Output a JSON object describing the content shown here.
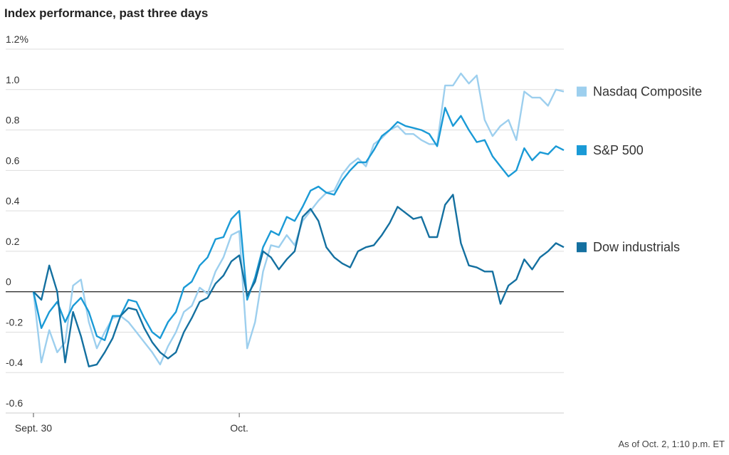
{
  "chart_data": {
    "type": "line",
    "title": "Index performance, past three days",
    "note": "As of Oct. 2, 1:10 p.m. ET",
    "categories": [
      "Sept. 30",
      null,
      null,
      null,
      null,
      null,
      null,
      null,
      null,
      null,
      null,
      null,
      null,
      null,
      null,
      null,
      null,
      null,
      null,
      null,
      null,
      null,
      null,
      null,
      null,
      null,
      "Oct.",
      null,
      null,
      null,
      null,
      null,
      null,
      null,
      null,
      null,
      null,
      null,
      null,
      null,
      null,
      null,
      null,
      null,
      null,
      null,
      null,
      null,
      null,
      null,
      null,
      null,
      null,
      null,
      null,
      null,
      null,
      null,
      null,
      null,
      null,
      null,
      null,
      null,
      null,
      null,
      null,
      null
    ],
    "ylim": [
      -0.6,
      1.2
    ],
    "yticks": [
      -0.6,
      -0.4,
      -0.2,
      0,
      0.2,
      0.4,
      0.6,
      0.8,
      {
        "value": 1,
        "label": "1.0"
      },
      {
        "value": 1.2,
        "label": "1.2%"
      }
    ],
    "grid": true,
    "series": [
      {
        "name": "Nasdaq Composite",
        "color": "#9dcfee",
        "values": [
          0,
          -0.35,
          -0.19,
          -0.3,
          -0.25,
          0.03,
          0.06,
          -0.15,
          -0.28,
          -0.2,
          -0.13,
          -0.12,
          -0.15,
          -0.2,
          -0.25,
          -0.3,
          -0.36,
          -0.27,
          -0.2,
          -0.1,
          -0.07,
          0.02,
          -0.01,
          0.1,
          0.17,
          0.28,
          0.3,
          -0.28,
          -0.15,
          0.1,
          0.23,
          0.22,
          0.28,
          0.23,
          0.35,
          0.4,
          0.45,
          0.49,
          0.5,
          0.58,
          0.63,
          0.66,
          0.62,
          0.73,
          0.76,
          0.8,
          0.82,
          0.78,
          0.78,
          0.75,
          0.73,
          0.73,
          1.02,
          1.02,
          1.08,
          1.03,
          1.07,
          0.85,
          0.77,
          0.82,
          0.85,
          0.75,
          0.99,
          0.96,
          0.96,
          0.92,
          1.0,
          0.99
        ]
      },
      {
        "name": "S&P 500",
        "color": "#1a9ad6",
        "values": [
          0,
          -0.18,
          -0.1,
          -0.05,
          -0.15,
          -0.07,
          -0.03,
          -0.1,
          -0.22,
          -0.24,
          -0.12,
          -0.12,
          -0.04,
          -0.05,
          -0.13,
          -0.2,
          -0.23,
          -0.15,
          -0.1,
          0.02,
          0.05,
          0.13,
          0.17,
          0.26,
          0.27,
          0.36,
          0.4,
          -0.04,
          0.07,
          0.22,
          0.3,
          0.28,
          0.37,
          0.35,
          0.42,
          0.5,
          0.52,
          0.49,
          0.48,
          0.55,
          0.6,
          0.64,
          0.64,
          0.7,
          0.77,
          0.8,
          0.84,
          0.82,
          0.81,
          0.8,
          0.78,
          0.72,
          0.91,
          0.82,
          0.87,
          0.8,
          0.74,
          0.75,
          0.67,
          0.62,
          0.57,
          0.6,
          0.71,
          0.65,
          0.69,
          0.68,
          0.72,
          0.7
        ]
      },
      {
        "name": "Dow industrials",
        "color": "#1470a0",
        "values": [
          0,
          -0.04,
          0.13,
          0,
          -0.35,
          -0.1,
          -0.22,
          -0.37,
          -0.36,
          -0.3,
          -0.23,
          -0.12,
          -0.08,
          -0.09,
          -0.18,
          -0.25,
          -0.3,
          -0.33,
          -0.3,
          -0.2,
          -0.13,
          -0.05,
          -0.03,
          0.04,
          0.08,
          0.15,
          0.18,
          -0.02,
          0.05,
          0.2,
          0.17,
          0.11,
          0.16,
          0.2,
          0.37,
          0.41,
          0.35,
          0.22,
          0.17,
          0.14,
          0.12,
          0.2,
          0.22,
          0.23,
          0.28,
          0.34,
          0.42,
          0.39,
          0.36,
          0.37,
          0.27,
          0.27,
          0.43,
          0.48,
          0.24,
          0.13,
          0.12,
          0.1,
          0.1,
          -0.06,
          0.03,
          0.06,
          0.16,
          0.11,
          0.17,
          0.2,
          0.24,
          0.22
        ]
      }
    ]
  }
}
